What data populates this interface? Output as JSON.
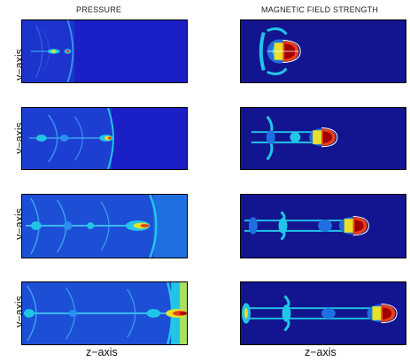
{
  "columns": {
    "left_title": "PRESSURE",
    "right_title": "MAGNETIC FIELD STRENGTH"
  },
  "axes": {
    "y_label": "y−axis",
    "x_label": "z−axis"
  },
  "colormap": {
    "low": "#1a1fc6",
    "mid_low": "#1f6fe0",
    "mid": "#22c5e8",
    "mid_high": "#e8e02a",
    "high": "#e8401a",
    "peak": "#a00000"
  },
  "rows": [
    {
      "panels": [
        "pressure-t1",
        "magnetic-t1"
      ]
    },
    {
      "panels": [
        "pressure-t2",
        "magnetic-t2"
      ]
    },
    {
      "panels": [
        "pressure-t3",
        "magnetic-t3"
      ]
    },
    {
      "panels": [
        "pressure-t4",
        "magnetic-t4"
      ]
    }
  ]
}
